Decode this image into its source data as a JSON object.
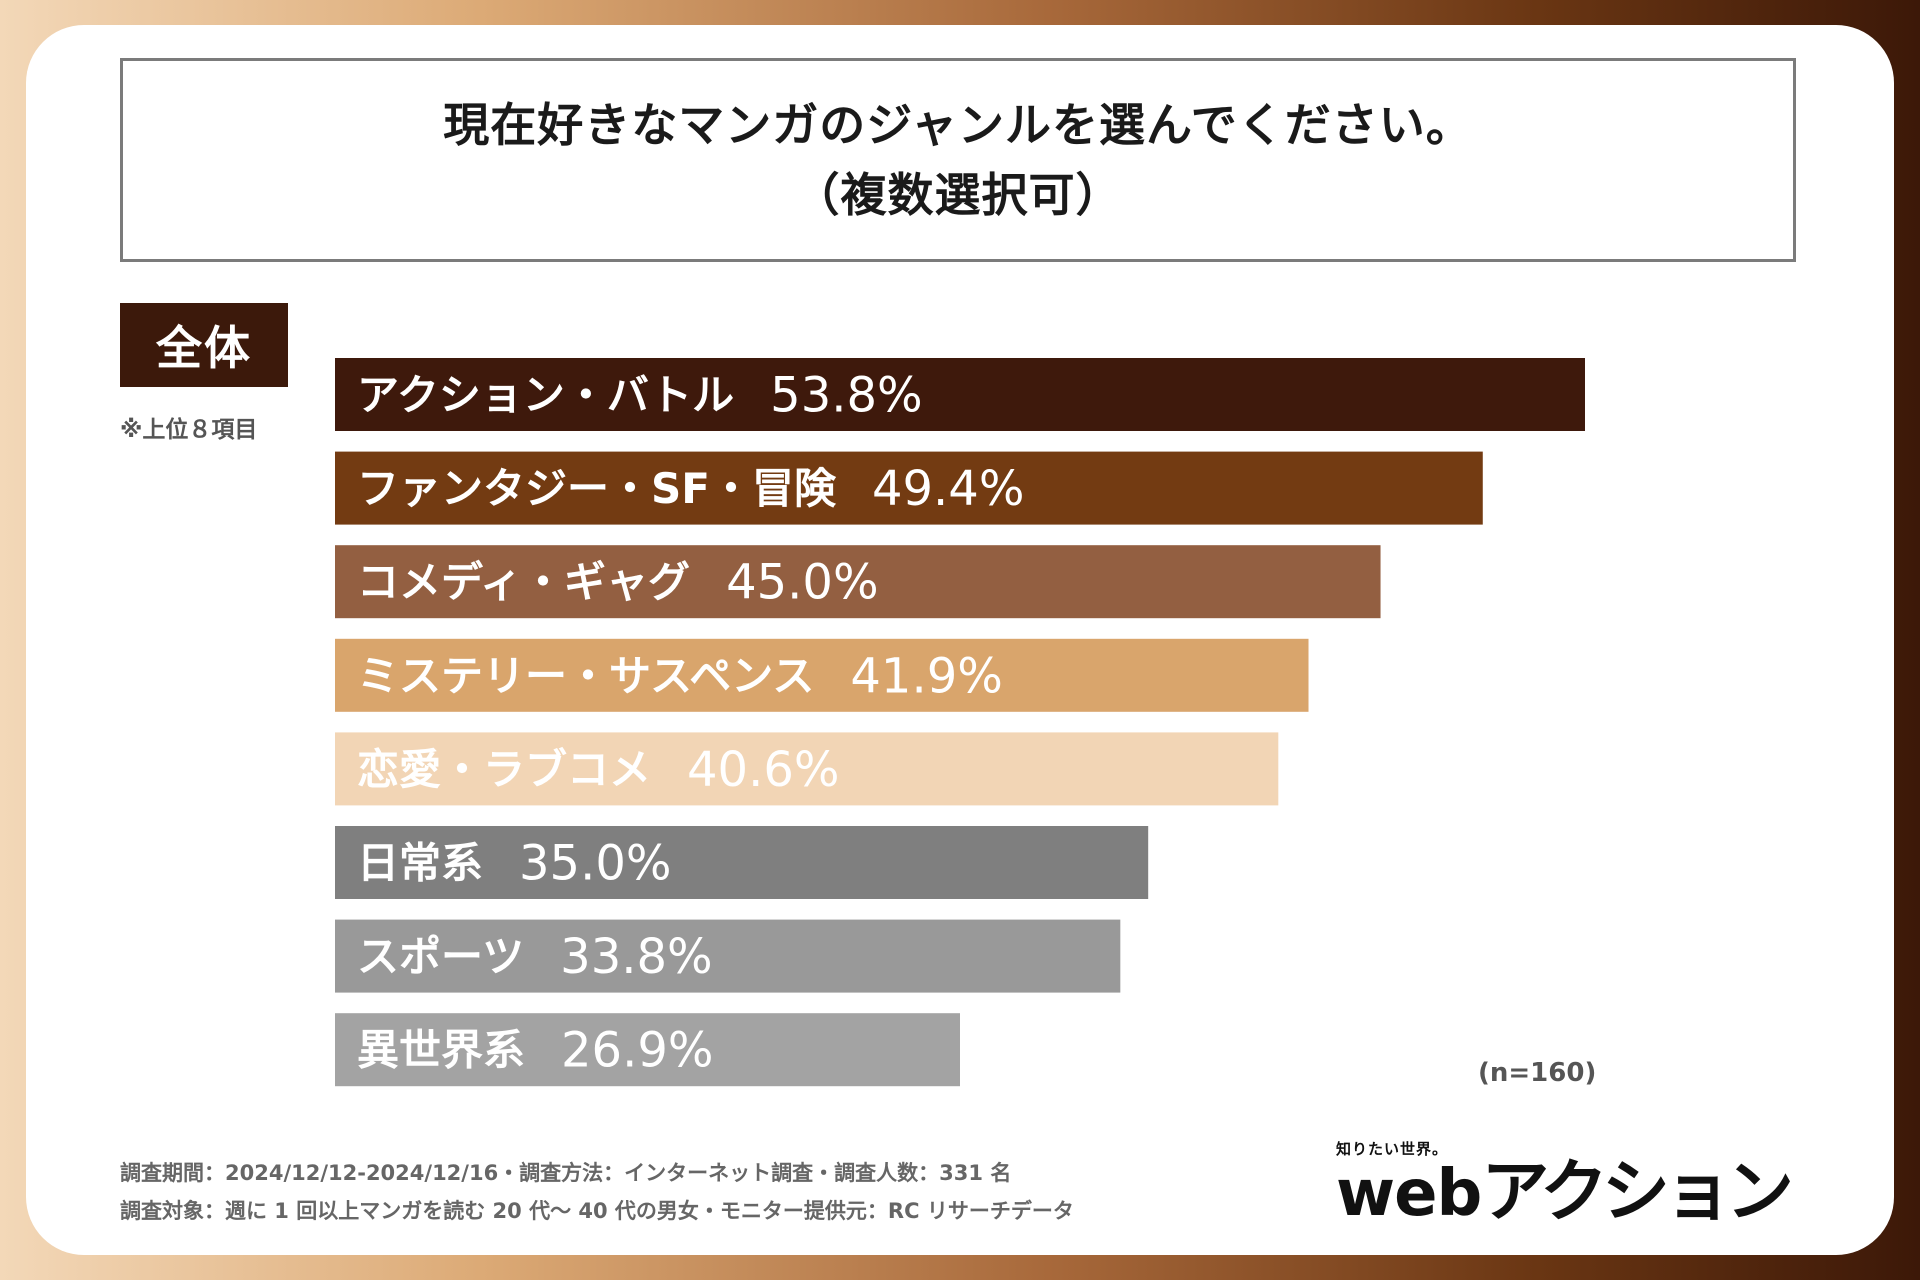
{
  "title": {
    "line1": "現在好きなマンガのジャンルを選んでください。",
    "line2": "（複数選択可）"
  },
  "section_label": "全体",
  "note": "※上位８項目",
  "sample_size": "(n=160)",
  "footer": {
    "line1": "調査期間：2024/12/12-2024/12/16・調査方法：インターネット調査・調査人数：331 名",
    "line2": "調査対象：週に 1 回以上マンガを読む 20 代〜 40 代の男女・モニター提供元：RC リサーチデータ"
  },
  "logo": {
    "tagline": "知りたい世界。",
    "web": "web",
    "name": "アクション"
  },
  "chart_data": {
    "type": "bar",
    "orientation": "horizontal",
    "title": "現在好きなマンガのジャンルを選んでください。（複数選択可）",
    "categories": [
      "アクション・バトル",
      "ファンタジー・SF・冒険",
      "コメディ・ギャグ",
      "ミステリー・サスペンス",
      "恋愛・ラブコメ",
      "日常系",
      "スポーツ",
      "異世界系"
    ],
    "values": [
      53.8,
      49.4,
      45.0,
      41.9,
      40.6,
      35.0,
      33.8,
      26.9
    ],
    "value_labels": [
      "53.8%",
      "49.4%",
      "45.0%",
      "41.9%",
      "40.6%",
      "35.0%",
      "33.8%",
      "26.9%"
    ],
    "unit": "%",
    "colors": [
      "#3e190c",
      "#733b12",
      "#935f41",
      "#d9a56c",
      "#f2d5b5",
      "#7f7f7f",
      "#999999",
      "#a3a3a3"
    ],
    "label_colors": [
      "#ffffff",
      "#ffffff",
      "#ffffff",
      "#ffffff",
      "#ffffff",
      "#ffffff",
      "#ffffff",
      "#ffffff"
    ],
    "xlim": [
      0,
      60
    ],
    "grid": false
  }
}
